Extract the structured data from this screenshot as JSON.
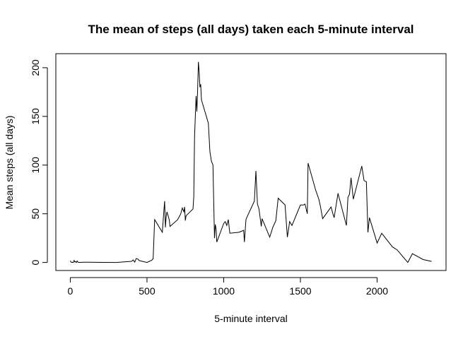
{
  "chart_data": {
    "type": "line",
    "title": "The mean of steps (all days) taken each 5-minute interval",
    "x_label": "5-minute interval",
    "y_label": "Mean steps (all days)",
    "x": [
      0,
      5,
      10,
      15,
      20,
      25,
      30,
      35,
      40,
      45,
      50,
      55,
      100,
      200,
      300,
      400,
      410,
      420,
      430,
      440,
      450,
      500,
      530,
      540,
      550,
      600,
      610,
      615,
      620,
      625,
      630,
      645,
      650,
      700,
      720,
      730,
      740,
      745,
      750,
      755,
      800,
      805,
      810,
      820,
      825,
      830,
      835,
      840,
      845,
      850,
      855,
      900,
      910,
      920,
      930,
      940,
      945,
      950,
      955,
      1000,
      1010,
      1020,
      1030,
      1040,
      1100,
      1130,
      1135,
      1145,
      1150,
      1200,
      1210,
      1220,
      1230,
      1245,
      1250,
      1300,
      1320,
      1340,
      1355,
      1400,
      1415,
      1430,
      1445,
      1500,
      1520,
      1530,
      1545,
      1550,
      1600,
      1620,
      1630,
      1645,
      1700,
      1710,
      1720,
      1745,
      1800,
      1810,
      1820,
      1830,
      1845,
      1900,
      1915,
      1930,
      1940,
      1950,
      2000,
      2030,
      2100,
      2130,
      2200,
      2230,
      2300,
      2355
    ],
    "series": [
      {
        "color": "#000000",
        "values": [
          1.7,
          0.3,
          0.1,
          0.2,
          0.1,
          2.1,
          0.5,
          0.9,
          0,
          1.5,
          0.3,
          0.1,
          0.3,
          0.1,
          0,
          1.2,
          2.6,
          0.3,
          4.1,
          3.5,
          1.9,
          0,
          2.2,
          3.8,
          44,
          31,
          53,
          63,
          36,
          47,
          52,
          44,
          37,
          44,
          50,
          56,
          52,
          57,
          43,
          48,
          55,
          68,
          129,
          171,
          155,
          177,
          206,
          196,
          180,
          183,
          167,
          143,
          114,
          104,
          100,
          25,
          39,
          35,
          21,
          40,
          42,
          38,
          44,
          30,
          31,
          33,
          21,
          44,
          46,
          63,
          94,
          60,
          55,
          37,
          45,
          26,
          36,
          43,
          66,
          59,
          26,
          42,
          38,
          59,
          59,
          60,
          50,
          102,
          74,
          65,
          58,
          45,
          57,
          51,
          46,
          71,
          38,
          67,
          70,
          87,
          65,
          99,
          84,
          83,
          31,
          46,
          20,
          30,
          16,
          13,
          0,
          9,
          3,
          1.1
        ]
      }
    ],
    "xlim": [
      -94.2,
      2449.2
    ],
    "ylim": [
      -8.25,
      214.42
    ],
    "xticks": [
      0,
      500,
      1000,
      1500,
      2000
    ],
    "yticks": [
      0,
      50,
      100,
      150,
      200
    ]
  }
}
